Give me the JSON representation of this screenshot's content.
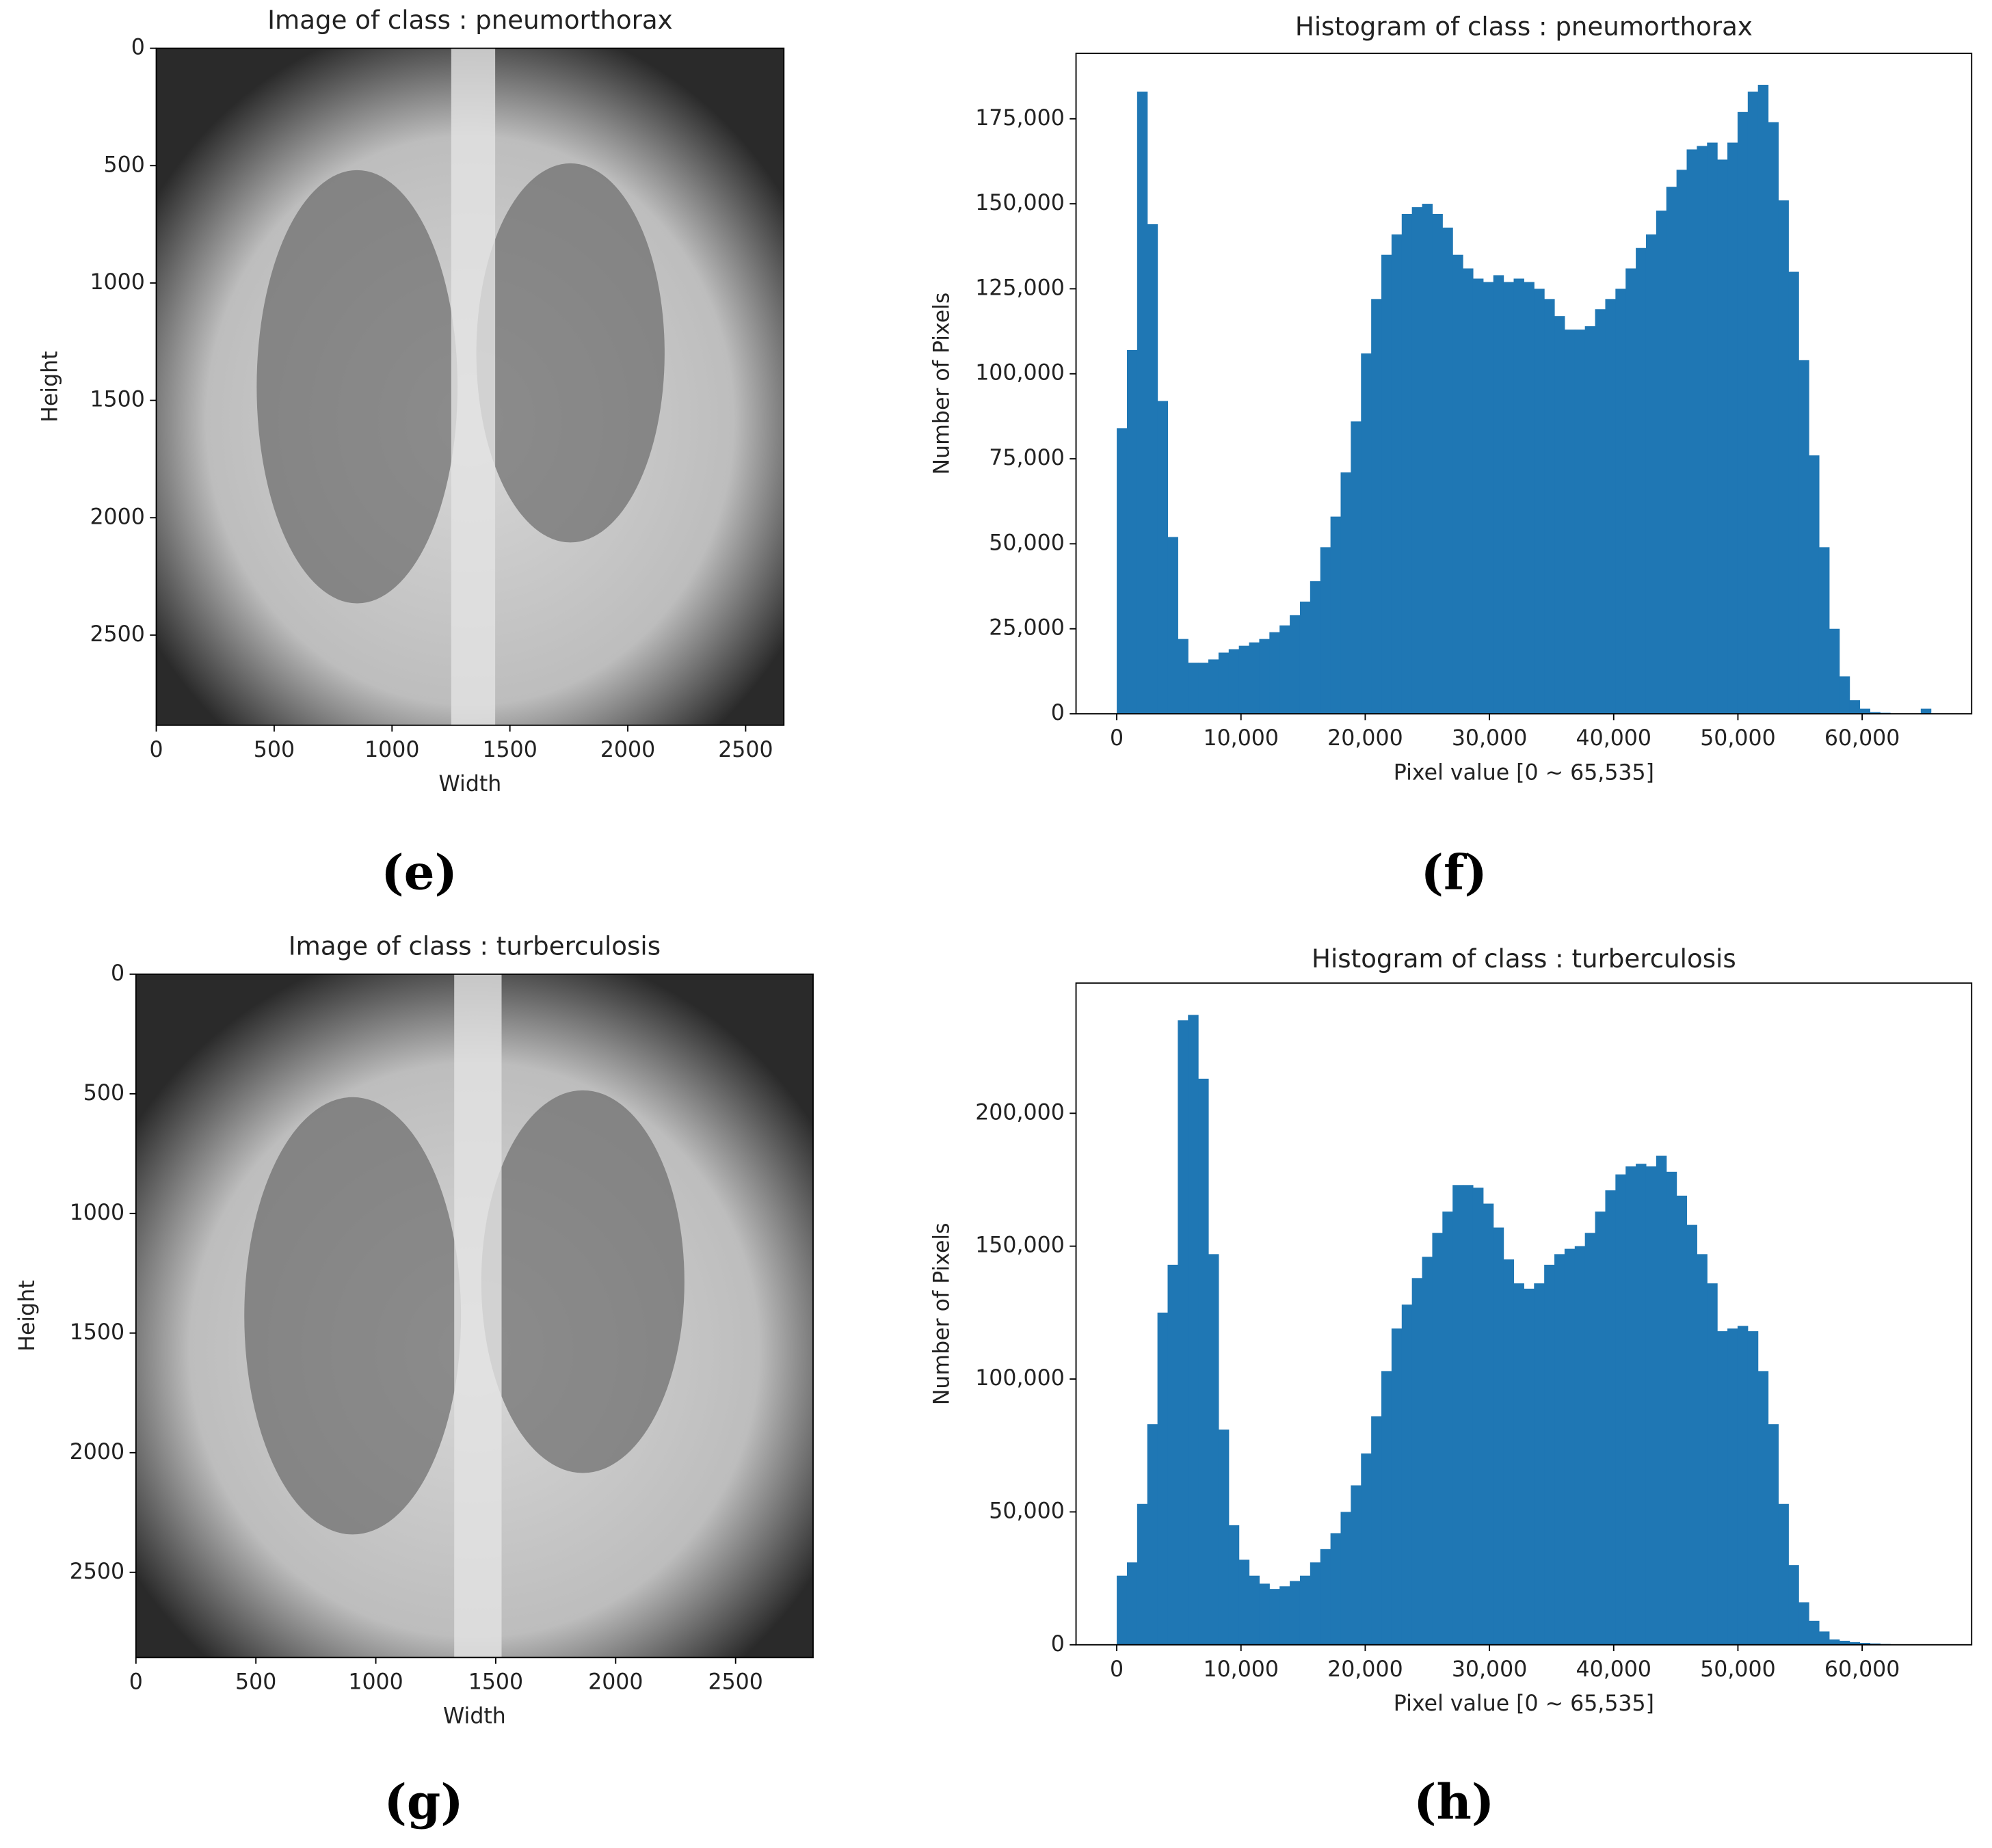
{
  "chart_data": [
    {
      "type": "image",
      "title": "Image of class : pneumorthorax",
      "label": "(e)",
      "xlabel": "Width",
      "ylabel": "Height",
      "xlim": [
        0,
        2662
      ],
      "ylim": [
        2884,
        0
      ],
      "xticks": [
        0,
        500,
        1000,
        1500,
        2000,
        2500
      ],
      "yticks": [
        0,
        500,
        1000,
        1500,
        2000,
        2500
      ]
    },
    {
      "type": "histogram",
      "title": "Histogram of class : pneumorthorax",
      "label": "(f)",
      "xlabel": "Pixel value [0 ~ 65,535]",
      "ylabel": "Number of Pixels",
      "color": "#1f77b4",
      "bins": [
        0,
        819.2,
        1638.4,
        2457.6,
        3276.8,
        4096,
        4915.2,
        5734.4,
        6553.6,
        7372.8,
        8192,
        9011.2,
        9830.4,
        10649.6,
        11468.8,
        12288,
        13107.2,
        13926.4,
        14745.6,
        15564.8,
        16384,
        17203.2,
        18022.4,
        18841.6,
        19660.8,
        20480,
        21299.2,
        22118.4,
        22937.6,
        23756.8,
        24576,
        25395.2,
        26214.4,
        27033.6,
        27852.8,
        28672,
        29491.2,
        30310.4,
        31129.6,
        31948.8,
        32768,
        33587.2,
        34406.4,
        35225.6,
        36044.8,
        36864,
        37683.2,
        38502.4,
        39321.6,
        40140.8,
        40960,
        41779.2,
        42598.4,
        43417.6,
        44236.8,
        45056,
        45875.2,
        46694.4,
        47513.6,
        48332.8,
        49152,
        49971.2,
        50790.4,
        51609.6,
        52428.8,
        53248,
        54067.2,
        54886.4,
        55705.6,
        56524.8,
        57344,
        58163.2,
        58982.4,
        59801.6,
        60620.8,
        61440,
        62259.2,
        63078.4,
        63897.6,
        64716.8,
        65536
      ],
      "values": [
        84000,
        107000,
        183000,
        144000,
        92000,
        52000,
        22000,
        15000,
        15000,
        16000,
        18000,
        19000,
        20000,
        21000,
        22000,
        24000,
        26000,
        29000,
        33000,
        39000,
        49000,
        58000,
        71000,
        86000,
        106000,
        122000,
        135000,
        141000,
        147000,
        149000,
        150000,
        147000,
        143000,
        135000,
        131000,
        128000,
        127000,
        129000,
        127000,
        128000,
        127000,
        125000,
        122000,
        117000,
        113000,
        113000,
        114000,
        119000,
        122000,
        125000,
        131000,
        137000,
        141000,
        148000,
        155000,
        160000,
        166000,
        167000,
        168000,
        163000,
        168000,
        177000,
        183000,
        185000,
        174000,
        151000,
        130000,
        104000,
        76000,
        49000,
        25000,
        11000,
        4000,
        1500,
        500,
        300,
        100,
        100,
        0,
        1500
      ],
      "xlim": [
        -3277,
        68813
      ],
      "ylim": [
        0,
        194250
      ],
      "xticks": [
        {
          "value": 0,
          "label": "0"
        },
        {
          "value": 10000,
          "label": "10,000"
        },
        {
          "value": 20000,
          "label": "20,000"
        },
        {
          "value": 30000,
          "label": "30,000"
        },
        {
          "value": 40000,
          "label": "40,000"
        },
        {
          "value": 50000,
          "label": "50,000"
        },
        {
          "value": 60000,
          "label": "60,000"
        }
      ],
      "yticks": [
        0,
        {
          "value": 25000,
          "label": "25,000"
        },
        {
          "value": 50000,
          "label": "50,000"
        },
        {
          "value": 75000,
          "label": "75,000"
        },
        {
          "value": 100000,
          "label": "100,000"
        },
        {
          "value": 125000,
          "label": "125,000"
        },
        {
          "value": 150000,
          "label": "150,000"
        },
        {
          "value": 175000,
          "label": "175,000"
        }
      ]
    },
    {
      "type": "image",
      "title": "Image of class : turberculosis",
      "label": "(g)",
      "xlabel": "Width",
      "ylabel": "Height",
      "xlim": [
        0,
        2823
      ],
      "ylim": [
        2856,
        0
      ],
      "xticks": [
        0,
        500,
        1000,
        1500,
        2000,
        2500
      ],
      "yticks": [
        0,
        500,
        1000,
        1500,
        2000,
        2500
      ]
    },
    {
      "type": "histogram",
      "title": "Histogram of class : turberculosis",
      "label": "(h)",
      "xlabel": "Pixel value [0 ~ 65,535]",
      "ylabel": "Number of Pixels",
      "color": "#1f77b4",
      "bins": [
        0,
        819.2,
        1638.4,
        2457.6,
        3276.8,
        4096,
        4915.2,
        5734.4,
        6553.6,
        7372.8,
        8192,
        9011.2,
        9830.4,
        10649.6,
        11468.8,
        12288,
        13107.2,
        13926.4,
        14745.6,
        15564.8,
        16384,
        17203.2,
        18022.4,
        18841.6,
        19660.8,
        20480,
        21299.2,
        22118.4,
        22937.6,
        23756.8,
        24576,
        25395.2,
        26214.4,
        27033.6,
        27852.8,
        28672,
        29491.2,
        30310.4,
        31129.6,
        31948.8,
        32768,
        33587.2,
        34406.4,
        35225.6,
        36044.8,
        36864,
        37683.2,
        38502.4,
        39321.6,
        40140.8,
        40960,
        41779.2,
        42598.4,
        43417.6,
        44236.8,
        45056,
        45875.2,
        46694.4,
        47513.6,
        48332.8,
        49152,
        49971.2,
        50790.4,
        51609.6,
        52428.8,
        53248,
        54067.2,
        54886.4,
        55705.6,
        56524.8,
        57344,
        58163.2,
        58982.4,
        59801.6,
        60620.8,
        61440,
        62259.2,
        63078.4,
        63897.6,
        64716.8,
        65536
      ],
      "values": [
        26000,
        31000,
        53000,
        83000,
        125000,
        143000,
        235000,
        237000,
        213000,
        147000,
        81000,
        45000,
        32000,
        26000,
        23000,
        21000,
        22000,
        24000,
        26000,
        31000,
        36000,
        42000,
        50000,
        60000,
        72000,
        86000,
        103000,
        119000,
        128000,
        138000,
        146000,
        155000,
        163000,
        173000,
        173000,
        172000,
        166000,
        157000,
        145000,
        136000,
        134000,
        136000,
        143000,
        147000,
        149000,
        150000,
        155000,
        163000,
        171000,
        177000,
        180000,
        181000,
        180000,
        184000,
        178000,
        169000,
        158000,
        147000,
        136000,
        118000,
        119000,
        120000,
        118000,
        103000,
        83000,
        53000,
        30000,
        16000,
        9000,
        5000,
        2000,
        1500,
        1000,
        700,
        500,
        300,
        200,
        100,
        100,
        0
      ],
      "xlim": [
        -3277,
        68813
      ],
      "ylim": [
        0,
        249000
      ],
      "xticks": [
        {
          "value": 0,
          "label": "0"
        },
        {
          "value": 10000,
          "label": "10,000"
        },
        {
          "value": 20000,
          "label": "20,000"
        },
        {
          "value": 30000,
          "label": "30,000"
        },
        {
          "value": 40000,
          "label": "40,000"
        },
        {
          "value": 50000,
          "label": "50,000"
        },
        {
          "value": 60000,
          "label": "60,000"
        }
      ],
      "yticks": [
        0,
        {
          "value": 50000,
          "label": "50,000"
        },
        {
          "value": 100000,
          "label": "100,000"
        },
        {
          "value": 150000,
          "label": "150,000"
        },
        {
          "value": 200000,
          "label": "200,000"
        }
      ]
    }
  ]
}
